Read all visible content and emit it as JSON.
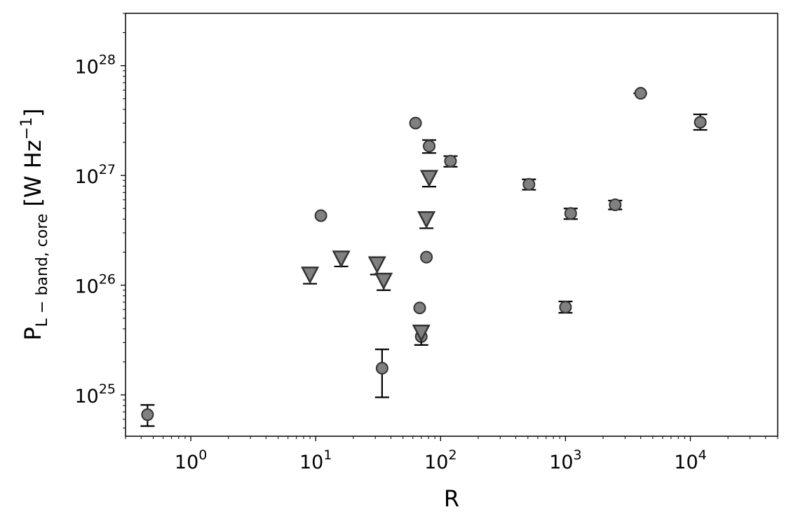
{
  "chart_data": {
    "type": "scatter",
    "title": "",
    "xlabel": "R",
    "ylabel": {
      "main": "P",
      "subscript": "L − band, core",
      "unit": "[W Hz",
      "unit_exp": "−1",
      "unit_close": "]"
    },
    "xscale": "log",
    "yscale": "log",
    "xlim": [
      0.3,
      50000
    ],
    "ylim": [
      4.2e+24,
      3e+28
    ],
    "x_ticks": [
      {
        "value": 1,
        "base": "10",
        "exp": "0"
      },
      {
        "value": 10,
        "base": "10",
        "exp": "1"
      },
      {
        "value": 100,
        "base": "10",
        "exp": "2"
      },
      {
        "value": 1000,
        "base": "10",
        "exp": "3"
      },
      {
        "value": 10000,
        "base": "10",
        "exp": "4"
      }
    ],
    "y_ticks": [
      {
        "value": 1e+25,
        "base": "10",
        "exp": "25"
      },
      {
        "value": 1e+26,
        "base": "10",
        "exp": "26"
      },
      {
        "value": 1e+27,
        "base": "10",
        "exp": "27"
      },
      {
        "value": 1e+28,
        "base": "10",
        "exp": "28"
      }
    ],
    "grid": false,
    "legend": "none",
    "marker_color": "#808080",
    "edge_color": "#333333",
    "series": [
      {
        "marker": "circle",
        "points": [
          {
            "x": 0.45,
            "y": 6.6e+24,
            "ylo": 5.2e+24,
            "yhi": 8.1e+24
          },
          {
            "x": 11,
            "y": 4.3e+26,
            "xlo": 10,
            "xhi": 12
          },
          {
            "x": 34,
            "y": 1.75e+25,
            "ylo": 9.5e+24,
            "yhi": 2.6e+25
          },
          {
            "x": 63,
            "y": 3e+27,
            "xlo": 57,
            "xhi": 70
          },
          {
            "x": 68,
            "y": 6.2e+25,
            "xlo": 62,
            "xhi": 75
          },
          {
            "x": 70,
            "y": 3.4e+25
          },
          {
            "x": 77,
            "y": 1.8e+26,
            "xlo": 70,
            "xhi": 85
          },
          {
            "x": 81,
            "y": 1.85e+27,
            "ylo": 1.6e+27,
            "yhi": 2.1e+27
          },
          {
            "x": 120,
            "y": 1.35e+27,
            "ylo": 1.2e+27,
            "yhi": 1.5e+27
          },
          {
            "x": 510,
            "y": 8.3e+26,
            "ylo": 7.4e+26,
            "yhi": 9.2e+26
          },
          {
            "x": 1000,
            "y": 6.3e+25,
            "ylo": 5.6e+25,
            "yhi": 7.1e+25
          },
          {
            "x": 1100,
            "y": 4.5e+26,
            "ylo": 4e+26,
            "yhi": 5e+26
          },
          {
            "x": 2500,
            "y": 5.4e+26,
            "ylo": 4.9e+26,
            "yhi": 5.9e+26
          },
          {
            "x": 4000,
            "y": 5.6e+27,
            "xlo": 3500,
            "xhi": 4500
          },
          {
            "x": 12000,
            "y": 3.05e+27,
            "ylo": 2.6e+27,
            "yhi": 3.6e+27
          }
        ]
      },
      {
        "marker": "triangle-down",
        "points": [
          {
            "x": 9,
            "y": 1.25e+26,
            "ylo": 1.03e+26
          },
          {
            "x": 16,
            "y": 1.75e+26,
            "ylo": 1.48e+26
          },
          {
            "x": 31,
            "y": 1.55e+26,
            "ylo": 1.25e+26
          },
          {
            "x": 35,
            "y": 1.1e+26,
            "ylo": 9e+25
          },
          {
            "x": 70,
            "y": 3.7e+25,
            "ylo": 2.85e+25
          },
          {
            "x": 77,
            "y": 4e+26,
            "ylo": 3.3e+26
          },
          {
            "x": 81,
            "y": 9.5e+26,
            "ylo": 7.9e+26
          }
        ]
      }
    ]
  }
}
